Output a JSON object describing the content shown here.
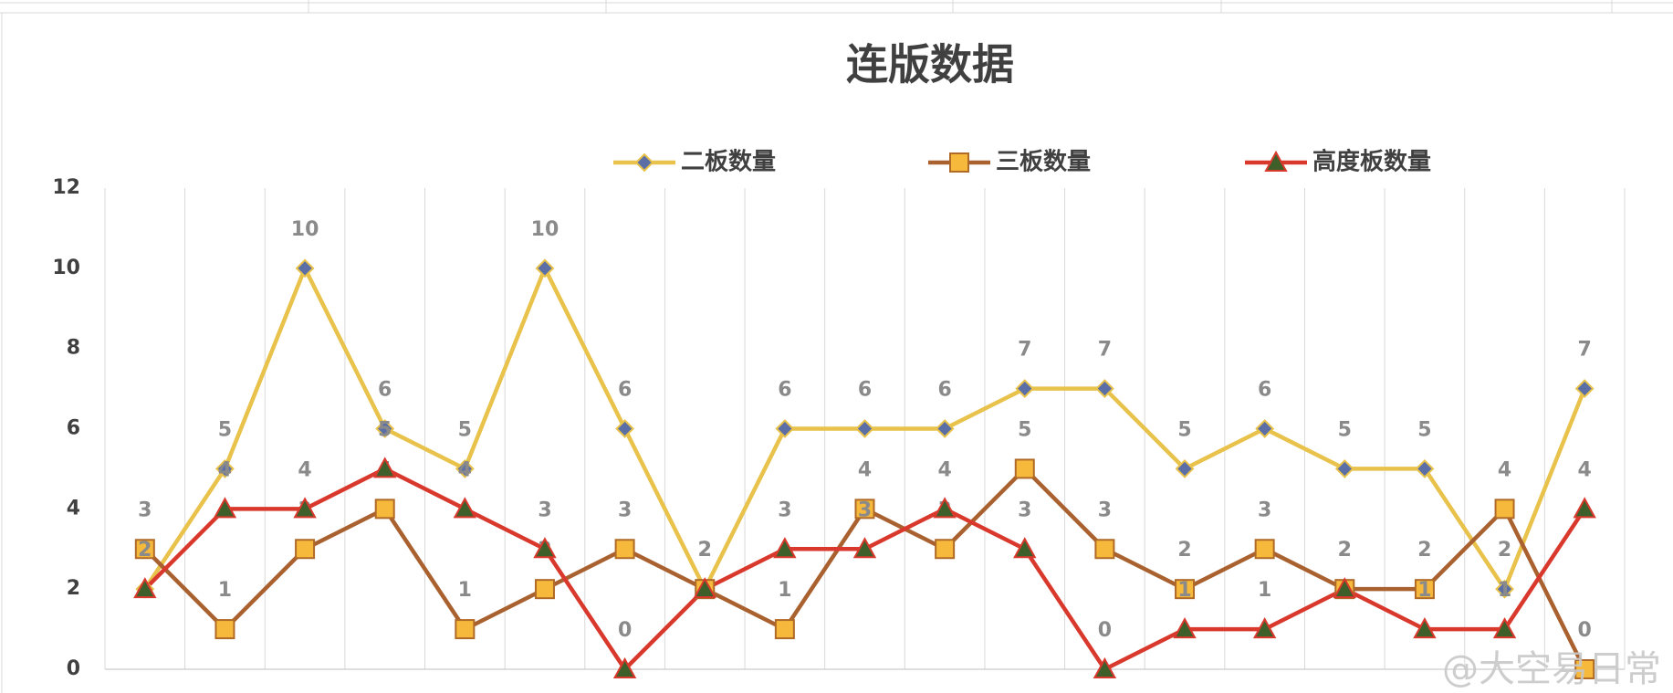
{
  "chart_data": {
    "type": "line",
    "title": "连版数据",
    "categories": [
      null,
      null,
      null,
      null,
      null,
      null,
      null,
      null,
      null,
      null,
      null,
      null,
      null,
      null,
      null,
      null,
      null,
      null,
      null
    ],
    "series": [
      {
        "name": "二板数量",
        "color": "#E8C24A",
        "marker": "diamond",
        "marker_color": "#5B6FA6",
        "values": [
          2,
          5,
          10,
          6,
          5,
          10,
          6,
          2,
          6,
          6,
          6,
          7,
          7,
          5,
          6,
          5,
          5,
          2,
          7
        ]
      },
      {
        "name": "三板数量",
        "color": "#A9612F",
        "marker": "square",
        "marker_color": "#F6B93B",
        "values": [
          3,
          1,
          3,
          4,
          1,
          2,
          3,
          2,
          1,
          4,
          3,
          5,
          3,
          2,
          3,
          2,
          2,
          4,
          0
        ]
      },
      {
        "name": "高度板数量",
        "color": "#D9392C",
        "marker": "triangle",
        "marker_color": "#3F5F2A",
        "values": [
          2,
          4,
          4,
          5,
          4,
          3,
          0,
          2,
          3,
          3,
          4,
          3,
          0,
          1,
          1,
          2,
          1,
          1,
          4
        ]
      }
    ],
    "ylim": [
      0,
      12
    ],
    "yticks": [
      0,
      2,
      4,
      6,
      8,
      10,
      12
    ],
    "grid": true,
    "legend": "top",
    "watermark": "@大空易日常"
  }
}
